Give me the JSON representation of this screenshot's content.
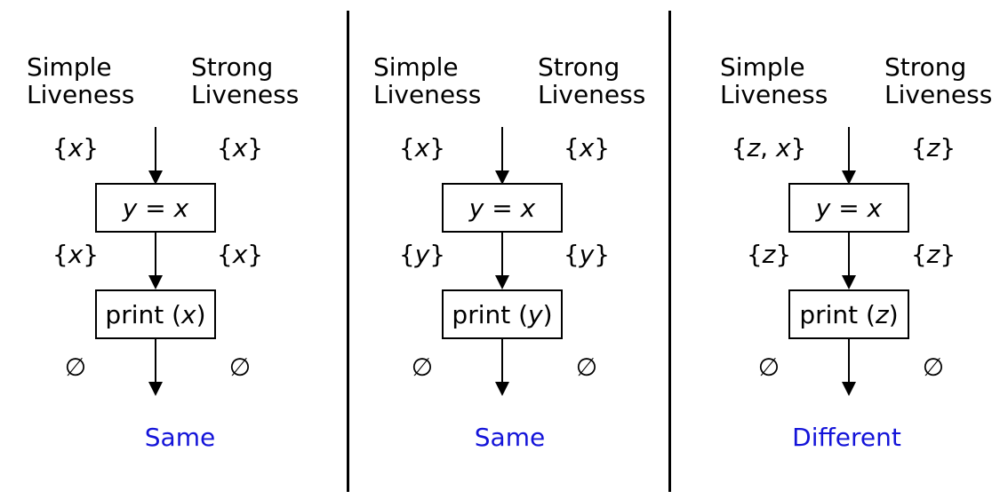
{
  "headers": {
    "simple": [
      "Simple",
      "Liveness"
    ],
    "strong": [
      "Strong",
      "Liveness"
    ]
  },
  "verdict_color": "#1414d9",
  "panels": [
    {
      "node1": {
        "lhs": "y",
        "op": " = ",
        "rhs": "x"
      },
      "node2": {
        "fn": "print",
        "arg": "x"
      },
      "simple_sets": [
        [
          "x"
        ],
        [
          "x"
        ],
        []
      ],
      "strong_sets": [
        [
          "x"
        ],
        [
          "x"
        ],
        []
      ],
      "verdict": "Same"
    },
    {
      "node1": {
        "lhs": "y",
        "op": " = ",
        "rhs": "x"
      },
      "node2": {
        "fn": "print",
        "arg": "y"
      },
      "simple_sets": [
        [
          "x"
        ],
        [
          "y"
        ],
        []
      ],
      "strong_sets": [
        [
          "x"
        ],
        [
          "y"
        ],
        []
      ],
      "verdict": "Same"
    },
    {
      "node1": {
        "lhs": "y",
        "op": " = ",
        "rhs": "x"
      },
      "node2": {
        "fn": "print",
        "arg": "z"
      },
      "simple_sets": [
        [
          "z",
          "x"
        ],
        [
          "z"
        ],
        []
      ],
      "strong_sets": [
        [
          "z"
        ],
        [
          "z"
        ],
        []
      ],
      "verdict": "Different"
    }
  ],
  "empty_set_symbol": "∅"
}
